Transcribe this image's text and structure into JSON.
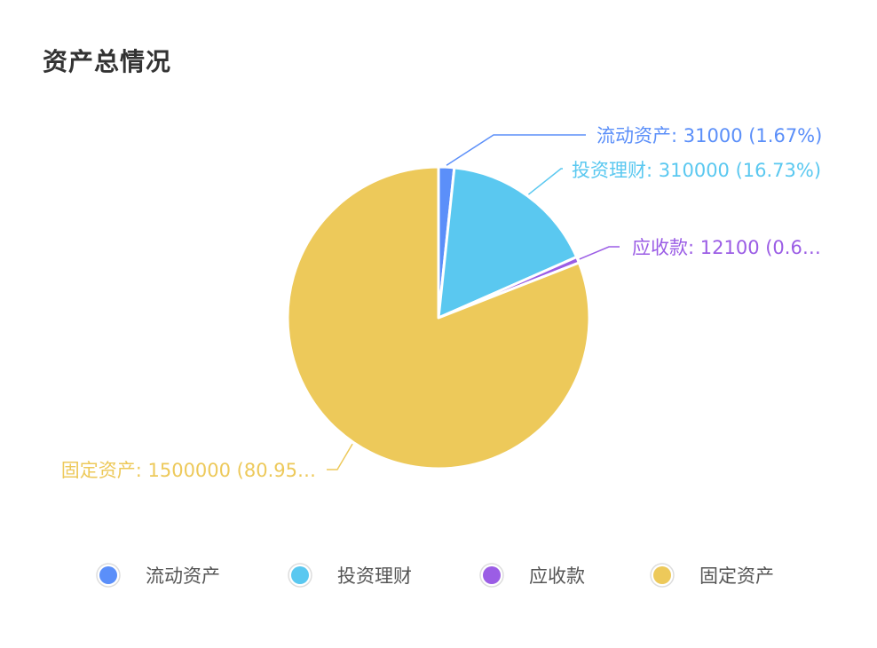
{
  "title": "资产总情况",
  "chart_data": {
    "type": "pie",
    "categories": [
      "流动资产",
      "投资理财",
      "应收款",
      "固定资产"
    ],
    "values": [
      31000,
      310000,
      12100,
      1500000
    ],
    "percent_labels": [
      "1.67%",
      "16.73%",
      "0.6…",
      "80.95…"
    ],
    "data_labels": [
      "流动资产: 31000 (1.67%)",
      "投资理财: 310000 (16.73%)",
      "应收款: 12100 (0.6…",
      "固定资产: 1500000 (80.95…"
    ],
    "colors": [
      "#5B8FF9",
      "#5AC8F0",
      "#9B5DE5",
      "#EDC95A"
    ],
    "legend": {
      "position": "bottom",
      "items": [
        "流动资产",
        "投资理财",
        "应收款",
        "固定资产"
      ]
    }
  }
}
